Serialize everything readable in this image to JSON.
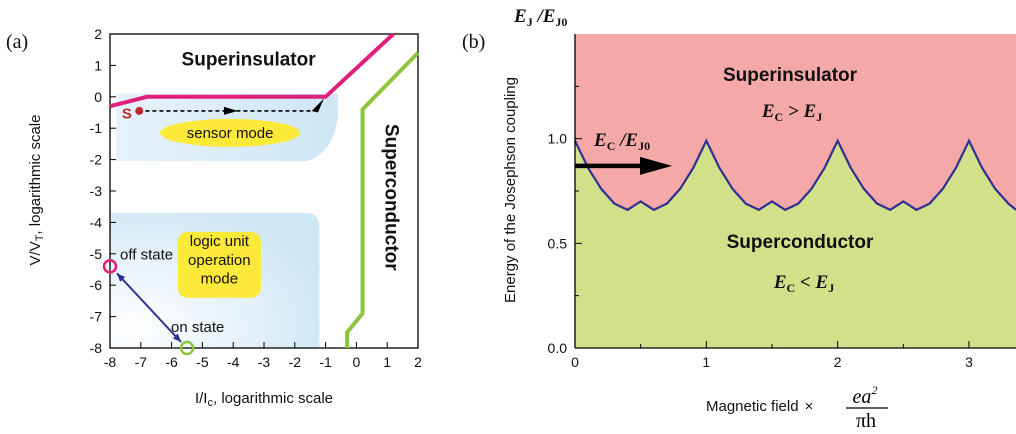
{
  "chart_data": [
    {
      "type": "line",
      "panel_label": "(a)",
      "xlabel": "I/Iₒ, logarithmic scale",
      "xlabel_display": "I/I",
      "xlabel_sub": "c",
      "xlabel_rest": ", logarithmic scale",
      "ylabel": "V/V",
      "ylabel_sub": "T",
      "ylabel_rest": ", logarithmic scale",
      "xlim": [
        -8,
        2
      ],
      "ylim": [
        -8,
        2
      ],
      "xticks": [
        "-8",
        "-7",
        "-6",
        "-5",
        "-4",
        "-3",
        "-2",
        "-1",
        "0",
        "1",
        "2"
      ],
      "yticks": [
        "-8",
        "-7",
        "-6",
        "-5",
        "-4",
        "-3",
        "-2",
        "-1",
        "0",
        "1",
        "2"
      ],
      "series": [
        {
          "name": "Superinsulator boundary",
          "color": "#e0207a",
          "x": [
            -8,
            -6.8,
            -1,
            1.2
          ],
          "y": [
            -0.3,
            0,
            0,
            2
          ]
        },
        {
          "name": "Superconductor boundary",
          "color": "#8cc63f",
          "x": [
            -0.3,
            -0.3,
            0.2,
            0.2,
            1.6,
            2
          ],
          "y": [
            -8,
            -7.5,
            -6.9,
            -0.4,
            1.0,
            1.4
          ]
        }
      ],
      "annotations": {
        "superinsulator": "Superinsulator",
        "superconductor": "Superconductor",
        "sensor_mode": "sensor mode",
        "sensor_marker": "S",
        "logic_line1": "logic unit",
        "logic_line2": "operation",
        "logic_line3": "mode",
        "off_state": "off state",
        "on_state": "on state",
        "off_point": {
          "x": -8,
          "y": -5.4
        },
        "on_point": {
          "x": -5.5,
          "y": -8
        }
      },
      "colors": {
        "region_fill": "#cfe6f5",
        "yellow": "#fde93a",
        "arrow": "#2e3192"
      }
    },
    {
      "type": "area",
      "panel_label": "(b)",
      "ylabel": "Energy of the Josephson coupling",
      "top_label": "E",
      "top_label_sub": "J",
      "top_label_mid": " /E",
      "top_label_sub2": "J0",
      "xlabel": "Magnetic field",
      "xlabel_times": "×",
      "xlabel_num": "ea",
      "xlabel_sup": "2",
      "xlabel_den": "πh",
      "xlim": [
        0,
        3.5
      ],
      "ylim": [
        0,
        1.5
      ],
      "xticks": [
        "0",
        "1",
        "2",
        "3"
      ],
      "yticks": [
        "0.0",
        "0.5",
        "1.0"
      ],
      "series": [
        {
          "name": "E_C / E_J0 boundary",
          "color": "#2e3192",
          "x": [
            0,
            0.1,
            0.2,
            0.3,
            0.4,
            0.5,
            0.6,
            0.7,
            0.8,
            0.9,
            1.0,
            1.1,
            1.2,
            1.3,
            1.4,
            1.5,
            1.6,
            1.7,
            1.8,
            1.9,
            2.0,
            2.1,
            2.2,
            2.3,
            2.4,
            2.5,
            2.6,
            2.7,
            2.8,
            2.9,
            3.0,
            3.1,
            3.2,
            3.3,
            3.4,
            3.5
          ],
          "y": [
            0.99,
            0.86,
            0.76,
            0.69,
            0.66,
            0.7,
            0.66,
            0.69,
            0.76,
            0.86,
            0.99,
            0.86,
            0.76,
            0.69,
            0.66,
            0.7,
            0.66,
            0.69,
            0.76,
            0.86,
            0.99,
            0.86,
            0.76,
            0.69,
            0.66,
            0.7,
            0.66,
            0.69,
            0.76,
            0.86,
            0.99,
            0.86,
            0.76,
            0.69,
            0.66,
            0.66
          ]
        }
      ],
      "annotations": {
        "superinsulator": "Superinsulator",
        "superconductor": "Superconductor",
        "ec_gt": {
          "a": "E",
          "a_sub": "C",
          "op": " > ",
          "b": "E",
          "b_sub": "J"
        },
        "ec_lt": {
          "a": "E",
          "a_sub": "C",
          "op": " < ",
          "b": "E",
          "b_sub": "J"
        },
        "arrow_label": {
          "a": "E",
          "a_sub": "C",
          "mid": " /E",
          "b_sub": "J0"
        },
        "arrow_level": 0.87
      },
      "colors": {
        "upper": "#f4a9a8",
        "lower": "#d2e08a",
        "curve": "#2e3192"
      }
    }
  ]
}
